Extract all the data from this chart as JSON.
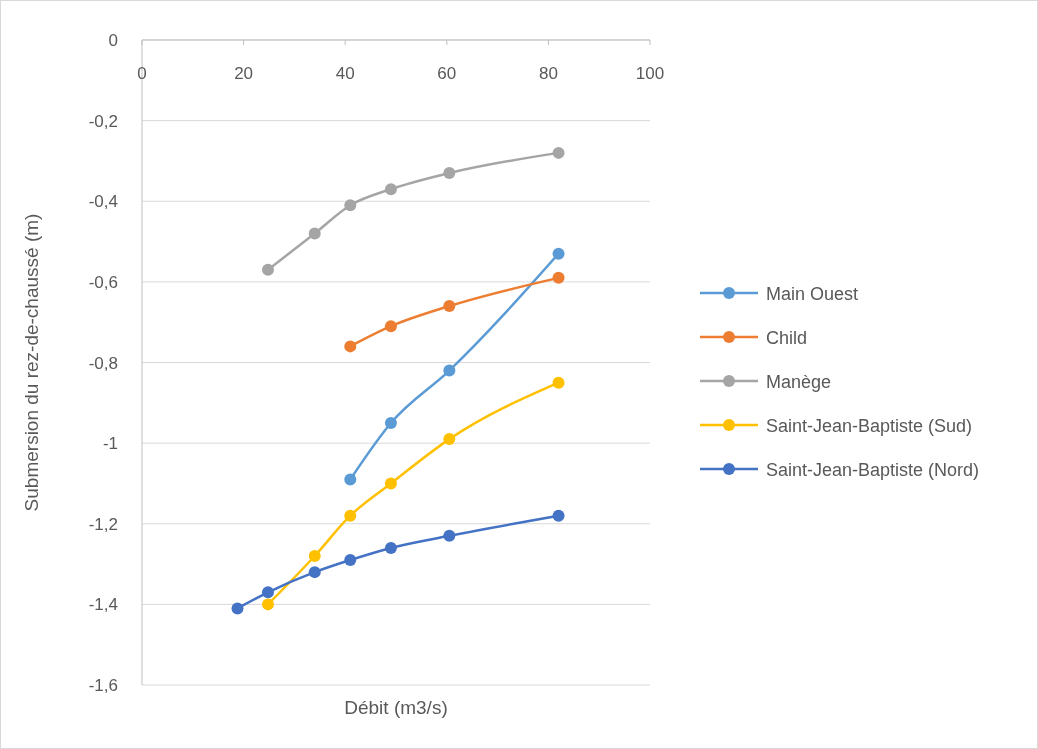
{
  "chart_data": {
    "type": "line",
    "xlabel": "Débit (m3/s)",
    "ylabel": "Submersion du rez-de-chaussé (m)",
    "xlim": [
      0,
      100
    ],
    "xticks": [
      0,
      20,
      40,
      60,
      80,
      100
    ],
    "ylim": [
      -1.6,
      0
    ],
    "yticks": [
      {
        "value": -1.6,
        "label": "-1,6"
      },
      {
        "value": -1.4,
        "label": "-1,4"
      },
      {
        "value": -1.2,
        "label": "-1,2"
      },
      {
        "value": -1,
        "label": "-1"
      },
      {
        "value": -0.8,
        "label": "-0,8"
      },
      {
        "value": -0.6,
        "label": "-0,6"
      },
      {
        "value": -0.4,
        "label": "-0,4"
      },
      {
        "value": -0.2,
        "label": "-0,2"
      },
      {
        "value": 0,
        "label": "0"
      }
    ],
    "grid": "y",
    "legend": "right",
    "marker": "circle",
    "line_style": "solid",
    "series": [
      {
        "name": "Main Ouest",
        "color": "#5b9bd5",
        "x": [
          41,
          49,
          60.5,
          82
        ],
        "values": [
          -1.09,
          -0.95,
          -0.82,
          -0.53
        ]
      },
      {
        "name": "Child",
        "color": "#ed7d31",
        "x": [
          41,
          49,
          60.5,
          82
        ],
        "values": [
          -0.76,
          -0.71,
          -0.66,
          -0.59
        ]
      },
      {
        "name": "Manège",
        "color": "#a5a5a5",
        "x": [
          24.8,
          34,
          41,
          49,
          60.5,
          82
        ],
        "values": [
          -0.57,
          -0.48,
          -0.41,
          -0.37,
          -0.33,
          -0.28
        ]
      },
      {
        "name": "Saint-Jean-Baptiste (Sud)",
        "color": "#ffc000",
        "x": [
          24.8,
          34,
          41,
          49,
          60.5,
          82
        ],
        "values": [
          -1.4,
          -1.28,
          -1.18,
          -1.1,
          -0.99,
          -0.85
        ]
      },
      {
        "name": "Saint-Jean-Baptiste (Nord)",
        "color": "#4472c4",
        "x": [
          18.8,
          24.8,
          34,
          41,
          49,
          60.5,
          82
        ],
        "values": [
          -1.41,
          -1.37,
          -1.32,
          -1.29,
          -1.26,
          -1.23,
          -1.18
        ]
      }
    ]
  }
}
